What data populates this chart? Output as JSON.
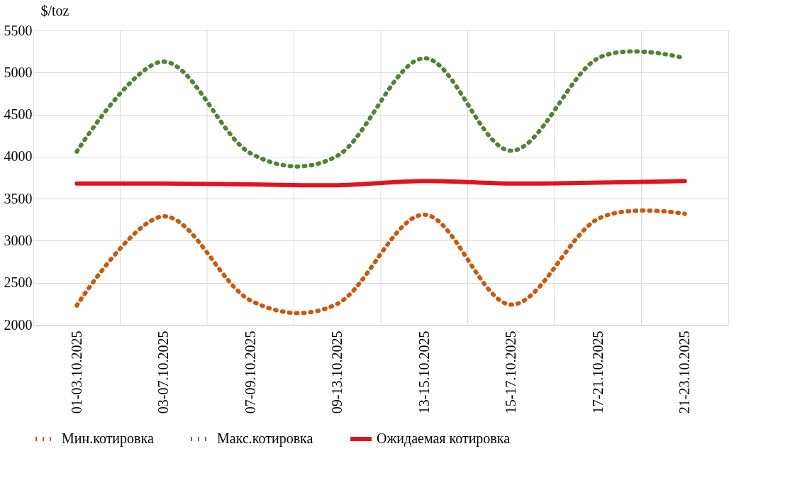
{
  "chart_data": {
    "type": "line",
    "ylabel": "$/toz",
    "categories": [
      "01-03.10.2025",
      "03-07.10.2025",
      "07-09.10.2025",
      "09-13.10.2025",
      "13-15.10.2025",
      "15-17.10.2025",
      "17-21.10.2025",
      "21-23.10.2025"
    ],
    "ylim": [
      2000,
      5500
    ],
    "yticks": [
      2000,
      2500,
      3000,
      3500,
      4000,
      4500,
      5000,
      5500
    ],
    "grid": true,
    "legend": "bottom",
    "series": [
      {
        "name": "Мин.котировка",
        "color": "#c55a11",
        "line_style": "dotted",
        "values": [
          2230,
          3290,
          2290,
          2250,
          3310,
          2240,
          3260,
          3320
        ]
      },
      {
        "name": "Макс.котировка",
        "color": "#548235",
        "line_style": "dotted",
        "values": [
          4060,
          5130,
          4040,
          4010,
          5170,
          4070,
          5170,
          5170
        ]
      },
      {
        "name": "Ожидаемая котировка",
        "color": "#e3131b",
        "line_style": "solid",
        "values": [
          3680,
          3680,
          3670,
          3660,
          3710,
          3680,
          3690,
          3710
        ]
      }
    ]
  }
}
